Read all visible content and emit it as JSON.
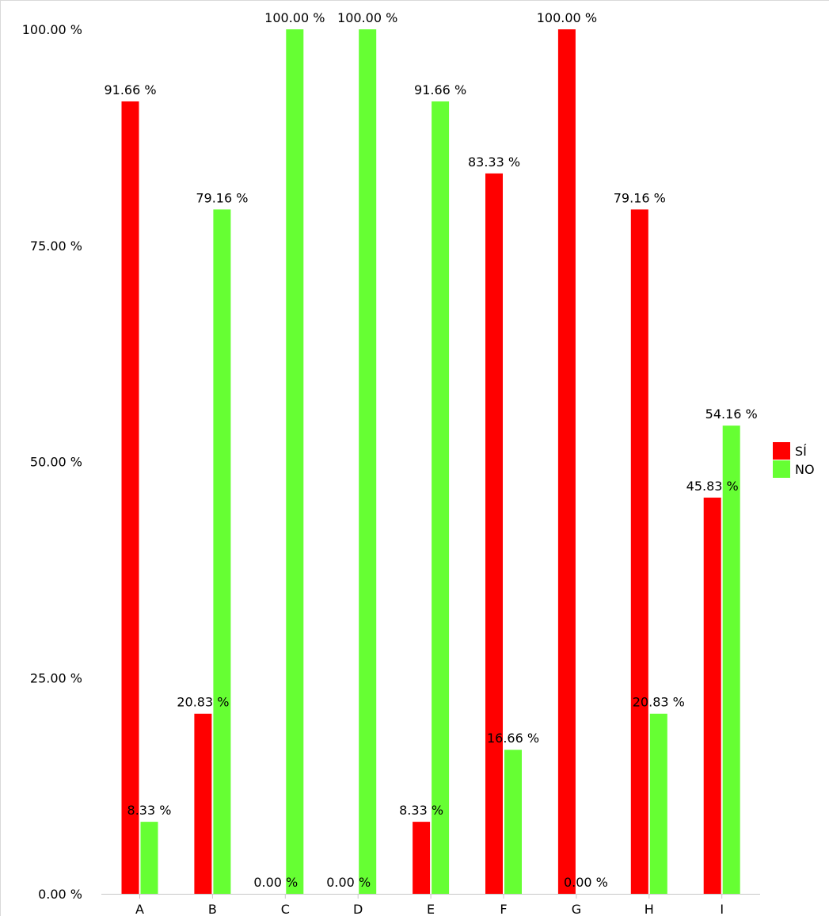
{
  "chart_data": {
    "type": "bar",
    "categories": [
      "A",
      "B",
      "C",
      "D",
      "E",
      "F",
      "G",
      "H",
      "I"
    ],
    "series": [
      {
        "name": "SÍ",
        "color": "#ff0000",
        "values": [
          91.66,
          20.83,
          0.0,
          0.0,
          8.33,
          83.33,
          100.0,
          79.16,
          45.83
        ],
        "labels": [
          "91.66 %",
          "20.83 %",
          "0.00 %",
          "0.00 %",
          "8.33 %",
          "83.33 %",
          "100.00 %",
          "79.16 %",
          "45.83 %"
        ]
      },
      {
        "name": "NO",
        "color": "#66ff33",
        "values": [
          8.33,
          79.16,
          100.0,
          100.0,
          91.66,
          16.66,
          0.0,
          20.83,
          54.16
        ],
        "labels": [
          "8.33 %",
          "79.16 %",
          "100.00 %",
          "100.00 %",
          "91.66 %",
          "16.66 %",
          "0.00 %",
          "20.83 %",
          "54.16 %"
        ]
      }
    ],
    "ylim": [
      0,
      100
    ],
    "yticks": [
      0,
      25,
      50,
      75,
      100
    ],
    "ytick_labels": [
      "0.00 %",
      "25.00 %",
      "50.00 %",
      "75.00 %",
      "100.00 %"
    ],
    "title": "",
    "xlabel": "",
    "ylabel": "",
    "grid": false,
    "legend_position": "right"
  }
}
